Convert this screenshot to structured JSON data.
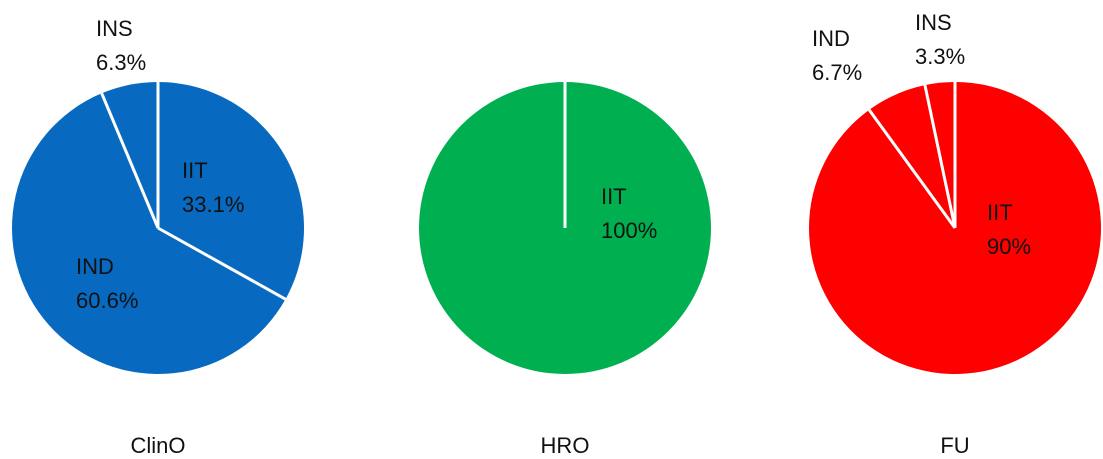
{
  "chart_data": [
    {
      "type": "pie",
      "title": "ClinO",
      "color": "#0869c0",
      "categories": [
        "IIT",
        "IND",
        "INS"
      ],
      "values": [
        33.1,
        60.6,
        6.3
      ],
      "value_labels": [
        "33.1%",
        "60.6%",
        "6.3%"
      ]
    },
    {
      "type": "pie",
      "title": "HRO",
      "color": "#00b050",
      "categories": [
        "IIT"
      ],
      "values": [
        100
      ],
      "value_labels": [
        "100%"
      ]
    },
    {
      "type": "pie",
      "title": "FU",
      "color": "#ff0000",
      "categories": [
        "IIT",
        "IND",
        "INS"
      ],
      "values": [
        90,
        6.7,
        3.3
      ],
      "value_labels": [
        "90%",
        "6.7%",
        "3.3%"
      ]
    }
  ]
}
